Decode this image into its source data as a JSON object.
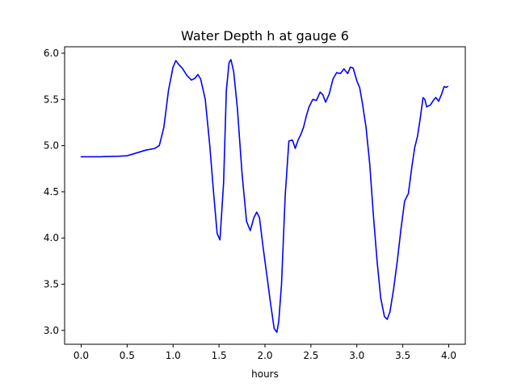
{
  "chart_data": {
    "type": "line",
    "title": "Water Depth h at gauge 6",
    "xlabel": "hours",
    "ylabel": "",
    "xlim": [
      -0.18,
      4.18
    ],
    "ylim": [
      2.85,
      6.07
    ],
    "xticks": [
      0.0,
      0.5,
      1.0,
      1.5,
      2.0,
      2.5,
      3.0,
      3.5,
      4.0
    ],
    "xtick_labels": [
      "0.0",
      "0.5",
      "1.0",
      "1.5",
      "2.0",
      "2.5",
      "3.0",
      "3.5",
      "4.0"
    ],
    "yticks": [
      3.0,
      3.5,
      4.0,
      4.5,
      5.0,
      5.5,
      6.0
    ],
    "ytick_labels": [
      "3.0",
      "3.5",
      "4.0",
      "4.5",
      "5.0",
      "5.5",
      "6.0"
    ],
    "grid": false,
    "legend": "none",
    "series": [
      {
        "color": "#0000ff",
        "x": [
          0.0,
          0.2,
          0.4,
          0.5,
          0.6,
          0.7,
          0.8,
          0.85,
          0.9,
          0.95,
          1.0,
          1.03,
          1.06,
          1.1,
          1.15,
          1.2,
          1.24,
          1.27,
          1.3,
          1.35,
          1.4,
          1.44,
          1.48,
          1.51,
          1.55,
          1.58,
          1.61,
          1.63,
          1.66,
          1.7,
          1.75,
          1.8,
          1.84,
          1.88,
          1.91,
          1.94,
          1.98,
          2.02,
          2.06,
          2.1,
          2.13,
          2.15,
          2.18,
          2.22,
          2.26,
          2.3,
          2.33,
          2.36,
          2.39,
          2.42,
          2.45,
          2.48,
          2.52,
          2.56,
          2.6,
          2.63,
          2.66,
          2.7,
          2.74,
          2.78,
          2.82,
          2.86,
          2.9,
          2.93,
          2.96,
          3.0,
          3.03,
          3.06,
          3.1,
          3.14,
          3.18,
          3.22,
          3.26,
          3.3,
          3.33,
          3.36,
          3.4,
          3.44,
          3.48,
          3.52,
          3.56,
          3.6,
          3.63,
          3.66,
          3.69,
          3.72,
          3.74,
          3.76,
          3.8,
          3.84,
          3.86,
          3.89,
          3.92,
          3.95,
          3.97,
          3.99
        ],
        "y": [
          4.88,
          4.88,
          4.885,
          4.89,
          4.92,
          4.95,
          4.97,
          5.0,
          5.2,
          5.6,
          5.85,
          5.92,
          5.88,
          5.84,
          5.76,
          5.71,
          5.73,
          5.77,
          5.72,
          5.5,
          5.0,
          4.5,
          4.05,
          3.98,
          4.6,
          5.6,
          5.9,
          5.93,
          5.8,
          5.4,
          4.7,
          4.18,
          4.08,
          4.22,
          4.28,
          4.22,
          3.9,
          3.6,
          3.3,
          3.02,
          2.98,
          3.1,
          3.5,
          4.45,
          5.05,
          5.06,
          4.97,
          5.06,
          5.12,
          5.2,
          5.32,
          5.42,
          5.5,
          5.49,
          5.58,
          5.55,
          5.47,
          5.56,
          5.72,
          5.79,
          5.78,
          5.83,
          5.78,
          5.85,
          5.84,
          5.7,
          5.63,
          5.46,
          5.2,
          4.8,
          4.25,
          3.75,
          3.35,
          3.15,
          3.12,
          3.2,
          3.45,
          3.75,
          4.1,
          4.4,
          4.48,
          4.78,
          4.98,
          5.1,
          5.3,
          5.52,
          5.5,
          5.42,
          5.44,
          5.5,
          5.52,
          5.48,
          5.55,
          5.64,
          5.63,
          5.64
        ]
      }
    ]
  }
}
